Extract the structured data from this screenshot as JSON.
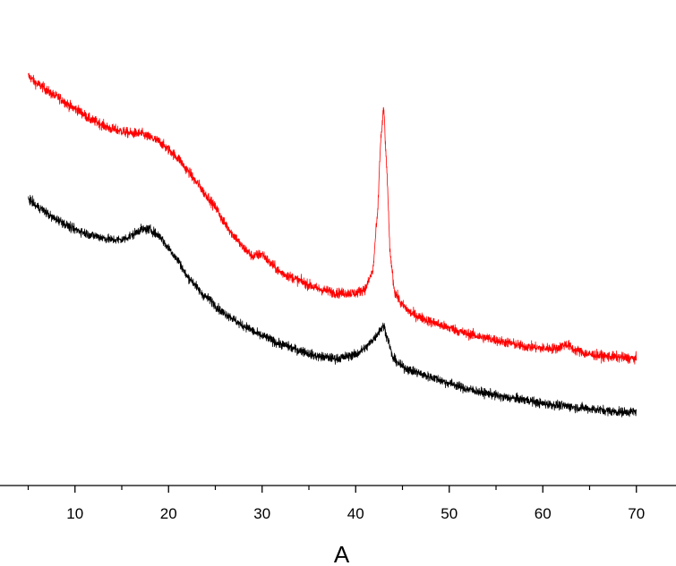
{
  "chart_data": {
    "type": "line",
    "title": "",
    "xlabel": "A",
    "ylabel": "",
    "xlim": [
      0,
      74
    ],
    "ylim": [
      0,
      1.12
    ],
    "x_major_ticks": [
      10,
      20,
      30,
      40,
      50,
      60,
      70
    ],
    "x_minor_ticks": [
      5,
      15,
      25,
      35,
      45,
      55,
      65
    ],
    "grid": false,
    "legend": "none",
    "series": [
      {
        "color": "#ff0000",
        "noise": 0.012,
        "x": [
          5,
          6,
          8,
          10,
          12,
          14,
          16,
          17,
          18,
          19,
          20,
          21,
          22,
          23,
          24,
          25,
          26,
          27,
          28,
          29,
          30,
          31,
          32,
          33,
          34,
          35,
          36,
          37,
          38,
          39,
          40,
          41,
          41.8,
          42.3,
          42.7,
          43,
          43.3,
          43.7,
          44.2,
          45,
          46,
          47,
          48,
          50,
          52,
          54,
          56,
          58,
          60,
          61.5,
          62.5,
          63.5,
          65,
          67,
          70
        ],
        "y": [
          1.0,
          0.98,
          0.95,
          0.92,
          0.89,
          0.87,
          0.86,
          0.86,
          0.85,
          0.84,
          0.82,
          0.8,
          0.77,
          0.74,
          0.71,
          0.68,
          0.64,
          0.61,
          0.58,
          0.56,
          0.565,
          0.54,
          0.52,
          0.51,
          0.5,
          0.49,
          0.48,
          0.475,
          0.47,
          0.47,
          0.47,
          0.48,
          0.52,
          0.65,
          0.85,
          0.92,
          0.78,
          0.56,
          0.47,
          0.44,
          0.42,
          0.41,
          0.4,
          0.385,
          0.37,
          0.36,
          0.35,
          0.34,
          0.335,
          0.335,
          0.345,
          0.33,
          0.32,
          0.315,
          0.31
        ]
      },
      {
        "color": "#000000",
        "noise": 0.011,
        "x": [
          5,
          6,
          8,
          10,
          12,
          14,
          15,
          16,
          17,
          18,
          19,
          20,
          21,
          22,
          24,
          26,
          28,
          30,
          32,
          34,
          36,
          38,
          40,
          41,
          42,
          42.6,
          43,
          43.4,
          44,
          45,
          46,
          48,
          50,
          52,
          54,
          56,
          58,
          60,
          62,
          64,
          66,
          68,
          70
        ],
        "y": [
          0.7,
          0.68,
          0.65,
          0.625,
          0.61,
          0.6,
          0.6,
          0.61,
          0.625,
          0.625,
          0.61,
          0.58,
          0.55,
          0.51,
          0.46,
          0.42,
          0.39,
          0.365,
          0.345,
          0.33,
          0.315,
          0.31,
          0.32,
          0.335,
          0.36,
          0.38,
          0.39,
          0.36,
          0.31,
          0.29,
          0.28,
          0.265,
          0.25,
          0.235,
          0.225,
          0.215,
          0.21,
          0.2,
          0.195,
          0.19,
          0.185,
          0.18,
          0.18
        ]
      }
    ]
  }
}
